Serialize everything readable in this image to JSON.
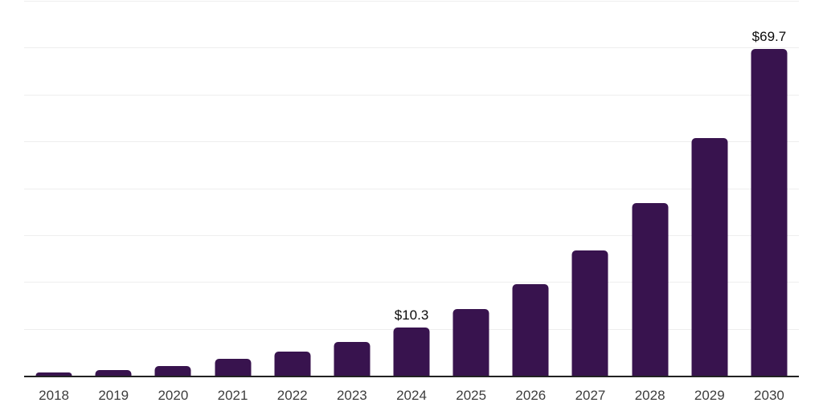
{
  "chart_data": {
    "type": "bar",
    "title": "",
    "xlabel": "",
    "ylabel": "",
    "categories": [
      "2018",
      "2019",
      "2020",
      "2021",
      "2022",
      "2023",
      "2024",
      "2025",
      "2026",
      "2027",
      "2028",
      "2029",
      "2030"
    ],
    "values": [
      0.7,
      1.2,
      2.1,
      3.6,
      5.2,
      7.2,
      10.3,
      14.2,
      19.5,
      26.8,
      36.9,
      50.7,
      69.7
    ],
    "labeled_points": [
      {
        "category": "2024",
        "label": "$10.3"
      },
      {
        "category": "2030",
        "label": "$69.7"
      }
    ],
    "ylim": [
      0,
      80
    ],
    "gridline_step": 10,
    "grid": "horizontal",
    "y_tick_labels_shown": false,
    "legend_position": "none",
    "colors": {
      "bar": "#38134e",
      "gridline": "#eeeeee",
      "axis_line": "#222222",
      "tick_label": "#3d3d3d",
      "value_label": "#0b0b0b",
      "background": "#ffffff"
    }
  }
}
